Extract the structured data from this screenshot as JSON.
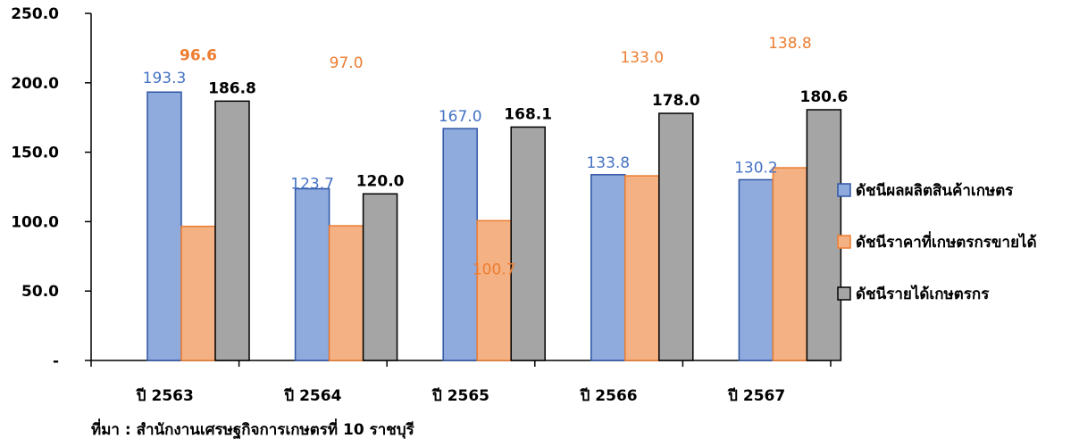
{
  "chart_data": {
    "type": "bar",
    "categories": [
      "ปี 2563",
      "ปี 2564",
      "ปี 2565",
      "ปี 2566",
      "ปี 2567"
    ],
    "series": [
      {
        "name": "ดัชนีผลผลิตสินค้าเกษตร",
        "values": [
          193.3,
          123.7,
          167.0,
          133.8,
          130.2
        ],
        "labels": [
          "193.3",
          "123.7",
          "167.0",
          "133.8",
          "130.2"
        ],
        "color": "#8faadc",
        "edge": "#2f55a4",
        "label_color": "#4472c4"
      },
      {
        "name": "ดัชนีราคาที่เกษตรกรขายได้",
        "values": [
          96.6,
          97.0,
          100.7,
          133.0,
          138.8
        ],
        "labels": [
          "96.6",
          "97.0",
          "100.7",
          "133.0",
          "138.8"
        ],
        "color": "#f4b183",
        "edge": "#ed7d31",
        "label_color": "#ed7d31"
      },
      {
        "name": "ดัชนีรายได้เกษตรกร",
        "values": [
          186.8,
          120.0,
          168.1,
          178.0,
          180.6
        ],
        "labels": [
          "186.8",
          "120.0",
          "168.1",
          "178.0",
          "180.6"
        ],
        "color": "#a5a5a5",
        "edge": "#000000",
        "label_color": "#000000"
      }
    ],
    "y_ticks": [
      "-",
      "50.0",
      "100.0",
      "150.0",
      "200.0",
      "250.0"
    ],
    "ylim": [
      0,
      250
    ],
    "legend_position": "right",
    "grid": false
  },
  "source_note": "ที่มา : สำนักงานเศรษฐกิจการเกษตรที่ 10 ราชบุรี"
}
